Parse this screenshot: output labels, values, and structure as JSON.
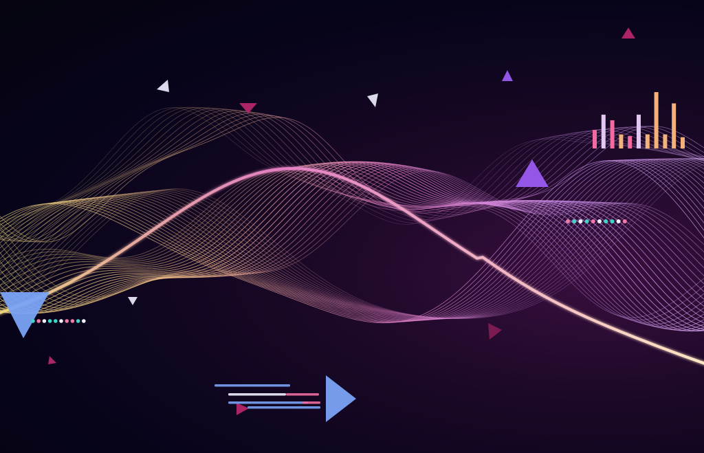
{
  "image": {
    "background": {
      "center": "#3a0f3e",
      "mid": "#1a0826",
      "edge": "#04030e"
    },
    "colors": {
      "gold": "#e9d27a",
      "peach": "#f2b98c",
      "pink": "#e47fc4",
      "violet": "#c78be8",
      "lavender": "#d7a6f0",
      "bright_line": "#ffe9c4",
      "triangle_blue": "#7aa3f5",
      "triangle_purple": "#9a5bf0",
      "triangle_magenta": "#b3266a",
      "triangle_white": "#e8e6f5",
      "bar_pink": "#f06ca0",
      "bar_peach": "#f2b27a",
      "bar_lilac": "#e2c7f2",
      "dot_teal": "#3fd6c8",
      "dot_pink": "#f07aa8",
      "dot_white": "#f2f2ff"
    },
    "motifs": [
      "wave-bundle",
      "bar-chart-icon",
      "triangle-shapes",
      "progress-bars",
      "dot-rows"
    ],
    "bar_chart_levels": [
      0.33,
      0.6,
      0.5,
      0.25,
      0.22,
      0.6,
      0.25,
      1.0,
      0.25,
      0.8,
      0.2
    ]
  }
}
